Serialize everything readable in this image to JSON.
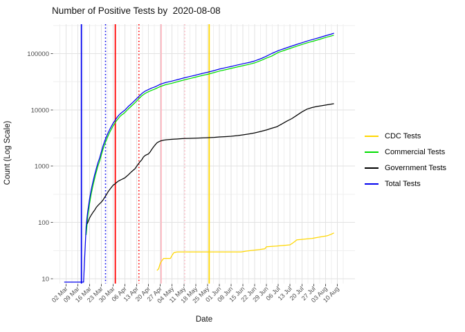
{
  "chart_data": {
    "type": "line",
    "title": "Number of Positive Tests by  2020-08-08",
    "xlabel": "Date",
    "ylabel": "Count (Log Scale)",
    "y_scale": "log10",
    "grid": true,
    "legend_position": "right",
    "x_unit": "days since 2020-03-01",
    "x_tick_days": [
      1,
      8,
      15,
      22,
      29,
      36,
      43,
      50,
      57,
      64,
      71,
      78,
      85,
      92,
      99,
      106,
      113,
      120,
      127,
      134,
      141,
      148,
      155,
      162
    ],
    "x_tick_labels": [
      "02 Mar",
      "09 Mar",
      "16 Mar",
      "23 Mar",
      "30 Mar",
      "06 Apr",
      "13 Apr",
      "20 Apr",
      "27 Apr",
      "04 May",
      "11 May",
      "18 May",
      "25 May",
      "01 Jun",
      "08 Jun",
      "15 Jun",
      "22 Jun",
      "29 Jun",
      "06 Jul",
      "13 Jul",
      "20 Jul",
      "27 Jul",
      "03 Aug",
      "10 Aug"
    ],
    "y_ticks": [
      10,
      100,
      1000,
      10000,
      100000
    ],
    "y_tick_labels": [
      "10",
      "100",
      "1000",
      "10000",
      "100000"
    ],
    "ylim_log10": [
      0.914,
      5.522
    ],
    "xlim_days": [
      -6.5,
      172.5
    ],
    "series": [
      {
        "name": "CDC Tests",
        "color": "#FFD700",
        "points": [
          [
            55,
            14
          ],
          [
            56,
            15
          ],
          [
            57,
            19
          ],
          [
            58,
            21
          ],
          [
            59,
            23
          ],
          [
            63,
            23
          ],
          [
            64,
            26
          ],
          [
            65,
            29
          ],
          [
            67,
            30
          ],
          [
            100,
            30
          ],
          [
            105,
            30
          ],
          [
            108,
            31
          ],
          [
            112,
            32
          ],
          [
            116,
            33
          ],
          [
            119,
            34
          ],
          [
            120,
            37
          ],
          [
            126,
            38
          ],
          [
            130,
            39
          ],
          [
            134,
            40
          ],
          [
            136,
            44
          ],
          [
            138,
            49
          ],
          [
            141,
            50
          ],
          [
            144,
            51
          ],
          [
            147,
            52
          ],
          [
            150,
            54
          ],
          [
            153,
            56
          ],
          [
            156,
            58
          ],
          [
            158,
            61
          ],
          [
            160,
            65
          ]
        ]
      },
      {
        "name": "Commercial Tests",
        "color": "#00DD00",
        "points": [
          [
            13,
            60
          ],
          [
            14,
            130
          ],
          [
            15,
            215
          ],
          [
            16,
            320
          ],
          [
            17,
            440
          ],
          [
            18,
            600
          ],
          [
            19,
            780
          ],
          [
            20,
            1000
          ],
          [
            21,
            1230
          ],
          [
            22,
            1570
          ],
          [
            23,
            2000
          ],
          [
            24,
            2450
          ],
          [
            25,
            2900
          ],
          [
            26,
            3450
          ],
          [
            27,
            4000
          ],
          [
            28,
            4550
          ],
          [
            29,
            5200
          ],
          [
            30,
            5750
          ],
          [
            31,
            6400
          ],
          [
            32,
            7000
          ],
          [
            33,
            7600
          ],
          [
            34,
            8100
          ],
          [
            35,
            8500
          ],
          [
            36,
            9000
          ],
          [
            38,
            10400
          ],
          [
            40,
            11800
          ],
          [
            42,
            13400
          ],
          [
            44,
            15500
          ],
          [
            46,
            17800
          ],
          [
            48,
            19600
          ],
          [
            50,
            21000
          ],
          [
            52,
            22400
          ],
          [
            54,
            23600
          ],
          [
            57,
            26000
          ],
          [
            60,
            28000
          ],
          [
            64,
            29800
          ],
          [
            68,
            32100
          ],
          [
            71,
            34000
          ],
          [
            75,
            36300
          ],
          [
            78,
            38200
          ],
          [
            82,
            41000
          ],
          [
            85,
            42800
          ],
          [
            89,
            46000
          ],
          [
            92,
            48800
          ],
          [
            96,
            52000
          ],
          [
            99,
            54500
          ],
          [
            103,
            58200
          ],
          [
            106,
            61000
          ],
          [
            110,
            64800
          ],
          [
            113,
            68500
          ],
          [
            117,
            76000
          ],
          [
            120,
            83500
          ],
          [
            123,
            90000
          ],
          [
            127,
            105000
          ],
          [
            131,
            115000
          ],
          [
            134,
            123500
          ],
          [
            138,
            135500
          ],
          [
            141,
            145000
          ],
          [
            145,
            158000
          ],
          [
            148,
            167000
          ],
          [
            152,
            181000
          ],
          [
            155,
            193000
          ],
          [
            158,
            204000
          ],
          [
            160,
            213000
          ]
        ]
      },
      {
        "name": "Government Tests",
        "color": "#000000",
        "points": [
          [
            13.7,
            95
          ],
          [
            15,
            120
          ],
          [
            16,
            135
          ],
          [
            17,
            150
          ],
          [
            18,
            165
          ],
          [
            19,
            185
          ],
          [
            20,
            200
          ],
          [
            21,
            215
          ],
          [
            22,
            230
          ],
          [
            23,
            250
          ],
          [
            24,
            280
          ],
          [
            25,
            310
          ],
          [
            26,
            350
          ],
          [
            27,
            385
          ],
          [
            28,
            420
          ],
          [
            29,
            460
          ],
          [
            30,
            480
          ],
          [
            31,
            510
          ],
          [
            32,
            540
          ],
          [
            33,
            560
          ],
          [
            34,
            580
          ],
          [
            35,
            600
          ],
          [
            36,
            620
          ],
          [
            37,
            660
          ],
          [
            38,
            700
          ],
          [
            39,
            750
          ],
          [
            40,
            800
          ],
          [
            41,
            850
          ],
          [
            42,
            900
          ],
          [
            43,
            1000
          ],
          [
            44,
            1100
          ],
          [
            45,
            1200
          ],
          [
            46,
            1300
          ],
          [
            47,
            1450
          ],
          [
            48,
            1550
          ],
          [
            49,
            1600
          ],
          [
            50,
            1650
          ],
          [
            51,
            1800
          ],
          [
            52,
            2000
          ],
          [
            53,
            2200
          ],
          [
            54,
            2400
          ],
          [
            55,
            2600
          ],
          [
            56,
            2700
          ],
          [
            57,
            2800
          ],
          [
            59,
            2900
          ],
          [
            61,
            2950
          ],
          [
            64,
            3000
          ],
          [
            68,
            3050
          ],
          [
            71,
            3100
          ],
          [
            75,
            3120
          ],
          [
            78,
            3150
          ],
          [
            82,
            3180
          ],
          [
            85,
            3200
          ],
          [
            89,
            3250
          ],
          [
            92,
            3300
          ],
          [
            96,
            3350
          ],
          [
            99,
            3400
          ],
          [
            103,
            3500
          ],
          [
            106,
            3600
          ],
          [
            110,
            3750
          ],
          [
            113,
            3900
          ],
          [
            116,
            4100
          ],
          [
            120,
            4400
          ],
          [
            123,
            4700
          ],
          [
            126,
            5000
          ],
          [
            129,
            5600
          ],
          [
            132,
            6300
          ],
          [
            135,
            7000
          ],
          [
            138,
            8000
          ],
          [
            141,
            9200
          ],
          [
            144,
            10300
          ],
          [
            147,
            11000
          ],
          [
            150,
            11500
          ],
          [
            153,
            11900
          ],
          [
            156,
            12300
          ],
          [
            160,
            12900
          ]
        ]
      },
      {
        "name": "Total Tests",
        "color": "#0000EE",
        "points": [
          [
            0,
            8.7
          ],
          [
            5,
            8.7
          ],
          [
            11.5,
            8.7
          ],
          [
            12,
            20
          ],
          [
            12.5,
            41
          ],
          [
            13,
            85
          ],
          [
            13.5,
            120
          ],
          [
            14,
            160
          ],
          [
            15,
            260
          ],
          [
            16,
            380
          ],
          [
            17,
            520
          ],
          [
            18,
            700
          ],
          [
            19,
            900
          ],
          [
            20,
            1150
          ],
          [
            21,
            1400
          ],
          [
            22,
            1800
          ],
          [
            23,
            2300
          ],
          [
            24,
            2800
          ],
          [
            25,
            3300
          ],
          [
            26,
            3900
          ],
          [
            27,
            4500
          ],
          [
            28,
            5100
          ],
          [
            29,
            5800
          ],
          [
            30,
            6400
          ],
          [
            31,
            7100
          ],
          [
            32,
            7800
          ],
          [
            33,
            8400
          ],
          [
            34,
            8900
          ],
          [
            35,
            9400
          ],
          [
            36,
            9900
          ],
          [
            38,
            11500
          ],
          [
            40,
            13000
          ],
          [
            42,
            14800
          ],
          [
            44,
            17000
          ],
          [
            46,
            19500
          ],
          [
            48,
            21500
          ],
          [
            50,
            23000
          ],
          [
            52,
            24500
          ],
          [
            54,
            25800
          ],
          [
            57,
            28500
          ],
          [
            60,
            30500
          ],
          [
            64,
            32500
          ],
          [
            68,
            35000
          ],
          [
            71,
            37000
          ],
          [
            75,
            39500
          ],
          [
            78,
            41500
          ],
          [
            82,
            44500
          ],
          [
            85,
            46500
          ],
          [
            89,
            50000
          ],
          [
            92,
            53000
          ],
          [
            96,
            56500
          ],
          [
            99,
            59000
          ],
          [
            103,
            63000
          ],
          [
            106,
            66000
          ],
          [
            110,
            70000
          ],
          [
            113,
            74000
          ],
          [
            117,
            82000
          ],
          [
            120,
            90000
          ],
          [
            123,
            100000
          ],
          [
            127,
            113000
          ],
          [
            131,
            124000
          ],
          [
            134,
            133000
          ],
          [
            138,
            146000
          ],
          [
            141,
            156000
          ],
          [
            145,
            170000
          ],
          [
            148,
            180000
          ],
          [
            152,
            195000
          ],
          [
            155,
            208000
          ],
          [
            158,
            220000
          ],
          [
            160,
            230000
          ]
        ]
      }
    ],
    "vlines": [
      {
        "day": 10.2,
        "color": "#0000EE",
        "style": "solid"
      },
      {
        "day": 24.5,
        "color": "#0000EE",
        "style": "dotted"
      },
      {
        "day": 30.3,
        "color": "#FF0000",
        "style": "solid"
      },
      {
        "day": 44.3,
        "color": "#FF0000",
        "style": "dotted"
      },
      {
        "day": 57.5,
        "color": "#FFB6C1",
        "style": "solid"
      },
      {
        "day": 71.5,
        "color": "#FFB6C1",
        "style": "dotted"
      },
      {
        "day": 86,
        "color": "#FFD700",
        "style": "solid"
      }
    ],
    "legend_entries": [
      "CDC Tests",
      "Commercial Tests",
      "Government Tests",
      "Total Tests"
    ]
  }
}
